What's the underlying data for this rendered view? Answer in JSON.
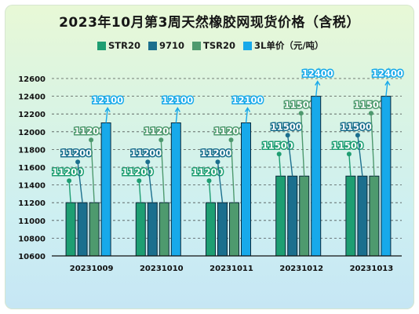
{
  "chart_data": {
    "type": "bar",
    "title": "2023年10月第3周天然橡胶网现货价格（含税）",
    "categories": [
      "20231009",
      "20231010",
      "20231011",
      "20231012",
      "20231013"
    ],
    "series": [
      {
        "name": "STR20",
        "color": "#1e9e72",
        "values": [
          11200,
          11200,
          11200,
          11500,
          11500
        ]
      },
      {
        "name": "9710",
        "color": "#1b6f8e",
        "values": [
          11200,
          11200,
          11200,
          11500,
          11500
        ]
      },
      {
        "name": "TSR20",
        "color": "#4e9a6e",
        "values": [
          11200,
          11200,
          11200,
          11500,
          11500
        ]
      },
      {
        "name": "3L单价（元/吨）",
        "color": "#17a9ea",
        "values": [
          12100,
          12100,
          12100,
          12400,
          12400
        ]
      }
    ],
    "data_labels": [
      [
        "11200",
        "11200",
        "11200",
        "12100"
      ],
      [
        "11200",
        "11200",
        "11200",
        "12100"
      ],
      [
        "11200",
        "11200",
        "11200",
        "12100"
      ],
      [
        "11500",
        "11500",
        "11500",
        "12400"
      ],
      [
        "11500",
        "11500",
        "11500",
        "12400"
      ]
    ],
    "ylim": [
      10600,
      12600
    ],
    "yticks": [
      "10600",
      "10800",
      "11000",
      "11200",
      "11400",
      "11600",
      "11800",
      "12000",
      "12200",
      "12400",
      "12600"
    ],
    "grid": true,
    "legend_position": "top"
  }
}
